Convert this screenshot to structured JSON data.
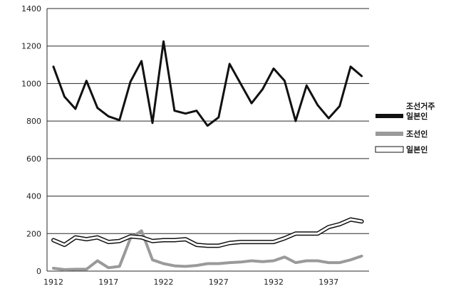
{
  "chart_data": {
    "type": "line",
    "title": "",
    "xlabel": "",
    "ylabel": "",
    "ylim": [
      0,
      1400
    ],
    "yticks": [
      0,
      200,
      400,
      600,
      800,
      1000,
      1200,
      1400
    ],
    "xlim": [
      1912,
      1940
    ],
    "xticks": [
      1912,
      1917,
      1922,
      1927,
      1932,
      1937
    ],
    "grid": "horizontal",
    "legend_position": "right",
    "x": [
      1912,
      1913,
      1914,
      1915,
      1916,
      1917,
      1918,
      1919,
      1920,
      1921,
      1922,
      1923,
      1924,
      1925,
      1926,
      1927,
      1928,
      1929,
      1930,
      1931,
      1932,
      1933,
      1934,
      1935,
      1936,
      1937,
      1938,
      1939,
      1940
    ],
    "series": [
      {
        "name": "조선거주\n일본인",
        "style": "thick-black",
        "color": "#111111",
        "values": [
          1090,
          930,
          865,
          1015,
          870,
          825,
          805,
          1010,
          1120,
          790,
          1225,
          855,
          840,
          855,
          775,
          820,
          1105,
          1000,
          895,
          970,
          1080,
          1015,
          800,
          990,
          885,
          815,
          880,
          1090,
          1040
        ]
      },
      {
        "name": "조선인",
        "style": "thick-gray",
        "color": "#9a9a9a",
        "values": [
          15,
          8,
          10,
          10,
          55,
          18,
          25,
          175,
          215,
          60,
          40,
          28,
          25,
          30,
          40,
          40,
          45,
          48,
          55,
          50,
          55,
          75,
          45,
          55,
          55,
          45,
          45,
          60,
          80
        ]
      },
      {
        "name": "일본인",
        "style": "double-outline",
        "color": "#111111",
        "values": [
          165,
          140,
          180,
          170,
          180,
          155,
          160,
          185,
          180,
          160,
          165,
          165,
          170,
          140,
          135,
          135,
          150,
          155,
          155,
          155,
          155,
          175,
          200,
          200,
          200,
          235,
          250,
          275,
          265
        ]
      }
    ]
  }
}
